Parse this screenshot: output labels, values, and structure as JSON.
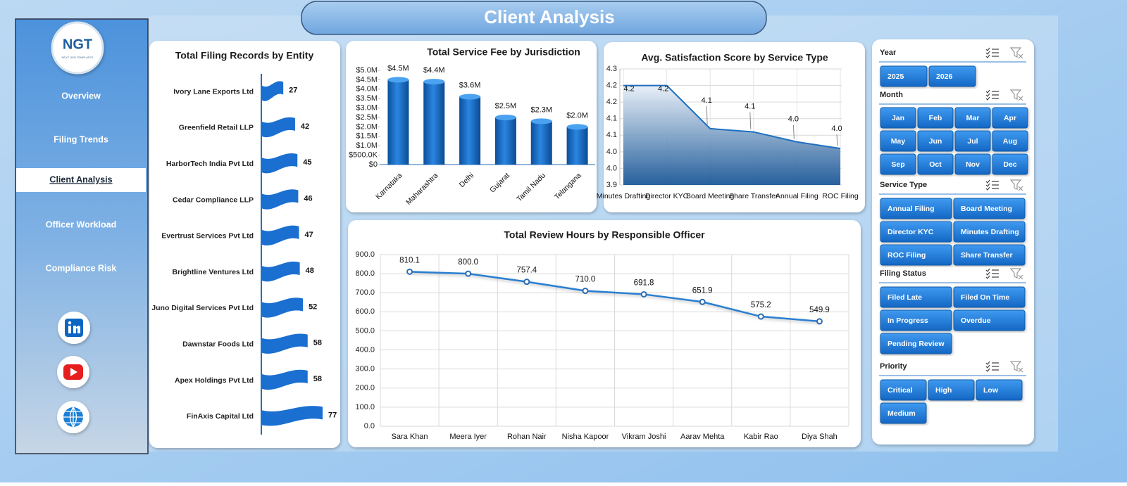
{
  "header": {
    "title": "Client Analysis"
  },
  "nav": {
    "logo": "NGT",
    "tagline": "NEXT GEN TEMPLATES",
    "items": [
      {
        "label": "Overview"
      },
      {
        "label": "Filing Trends"
      },
      {
        "label": "Client Analysis",
        "selected": true
      },
      {
        "label": "Officer Workload"
      },
      {
        "label": "Compliance Risk"
      }
    ]
  },
  "chart_data": [
    {
      "type": "bar",
      "orientation": "horizontal",
      "title": "Total Filing Records by Entity",
      "color": "#1a6fd0",
      "categories": [
        "Ivory Lane Exports Ltd",
        "Greenfield Retail LLP",
        "HarborTech India Pvt Ltd",
        "Cedar Compliance LLP",
        "Evertrust Services Pvt Ltd",
        "Brightline Ventures Ltd",
        "Juno Digital Services Pvt Ltd",
        "Dawnstar Foods Ltd",
        "Apex Holdings Pvt Ltd",
        "FinAxis Capital Ltd"
      ],
      "values": [
        27,
        42,
        45,
        46,
        47,
        48,
        52,
        58,
        58,
        77
      ]
    },
    {
      "type": "column",
      "title": "Total Service Fee by Jurisdiction",
      "color": "#0d5fb8",
      "categories": [
        "Karnataka",
        "Maharashtra",
        "Delhi",
        "Gujarat",
        "Tamil Nadu",
        "Telangana"
      ],
      "values": [
        4500000,
        4400000,
        3600000,
        2500000,
        2300000,
        2000000
      ],
      "value_labels": [
        "$4.5M",
        "$4.4M",
        "$3.6M",
        "$2.5M",
        "$2.3M",
        "$2.0M"
      ],
      "ylim": [
        0,
        5000000
      ],
      "yticks": [
        {
          "value": 0,
          "label": "$0"
        },
        {
          "value": 500000,
          "label": "$500.0K"
        },
        {
          "value": 1000000,
          "label": "$1.0M"
        },
        {
          "value": 1500000,
          "label": "$1.5M"
        },
        {
          "value": 2000000,
          "label": "$2.0M"
        },
        {
          "value": 2500000,
          "label": "$2.5M"
        },
        {
          "value": 3000000,
          "label": "$3.0M"
        },
        {
          "value": 3500000,
          "label": "$3.5M"
        },
        {
          "value": 4000000,
          "label": "$4.0M"
        },
        {
          "value": 4500000,
          "label": "$4.5M"
        },
        {
          "value": 5000000,
          "label": "$5.0M"
        }
      ]
    },
    {
      "type": "area",
      "title": "Avg. Satisfaction Score by Service Type",
      "color": "#1e6fc0",
      "grid": true,
      "categories": [
        "Minutes Drafting",
        "Director KYC",
        "Board Meeting",
        "Share Transfer",
        "Annual Filing",
        "ROC Filing"
      ],
      "values": [
        4.2,
        4.2,
        4.07,
        4.06,
        4.03,
        4.01
      ],
      "value_labels": [
        "4.2",
        "4.2",
        "4.1",
        "4.1",
        "4.0",
        "4.0"
      ],
      "ylim": [
        3.9,
        4.25
      ],
      "yticks": [
        3.9,
        {
          "value": 3.95,
          "label": "4.0"
        },
        {
          "value": 4,
          "label": "4.0"
        },
        {
          "value": 4.05,
          "label": "4.1"
        },
        4.1,
        {
          "value": 4.15,
          "label": "4.2"
        },
        4.2,
        {
          "value": 4.25,
          "label": "4.3"
        }
      ]
    },
    {
      "type": "line",
      "title": "Total Review Hours by Responsible Officer",
      "color": "#2a7fd0",
      "grid": true,
      "categories": [
        "Sara Khan",
        "Meera Iyer",
        "Rohan Nair",
        "Nisha Kapoor",
        "Vikram Joshi",
        "Aarav Mehta",
        "Kabir Rao",
        "Diya Shah"
      ],
      "values": [
        810.1,
        800.0,
        757.4,
        710.0,
        691.8,
        651.9,
        575.2,
        549.9
      ],
      "value_labels": [
        "810.1",
        "800.0",
        "757.4",
        "710.0",
        "691.8",
        "651.9",
        "575.2",
        "549.9"
      ],
      "ylim": [
        0,
        900
      ],
      "yticks": [
        {
          "value": 0,
          "label": "0.0"
        },
        {
          "value": 100,
          "label": "100.0"
        },
        {
          "value": 200,
          "label": "200.0"
        },
        {
          "value": 300,
          "label": "300.0"
        },
        {
          "value": 400,
          "label": "400.0"
        },
        {
          "value": 500,
          "label": "500.0"
        },
        {
          "value": 600,
          "label": "600.0"
        },
        {
          "value": 700,
          "label": "700.0"
        },
        {
          "value": 800,
          "label": "800.0"
        },
        {
          "value": 900,
          "label": "900.0"
        }
      ]
    }
  ],
  "slicers": [
    {
      "title": "Year",
      "items": [
        "2025",
        "2026"
      ]
    },
    {
      "title": "Month",
      "items": [
        "Jan",
        "Feb",
        "Mar",
        "Apr",
        "May",
        "Jun",
        "Jul",
        "Aug",
        "Sep",
        "Oct",
        "Nov",
        "Dec"
      ]
    },
    {
      "title": "Service Type",
      "items": [
        "Annual Filing",
        "Board Meeting",
        "Director KYC",
        "Minutes Drafting",
        "ROC Filing",
        "Share Transfer"
      ]
    },
    {
      "title": "Filing Status",
      "items": [
        "Filed Late",
        "Filed On Time",
        "In Progress",
        "Overdue",
        "Pending Review"
      ]
    },
    {
      "title": "Priority",
      "items": [
        "Critical",
        "High",
        "Low",
        "Medium"
      ]
    }
  ]
}
